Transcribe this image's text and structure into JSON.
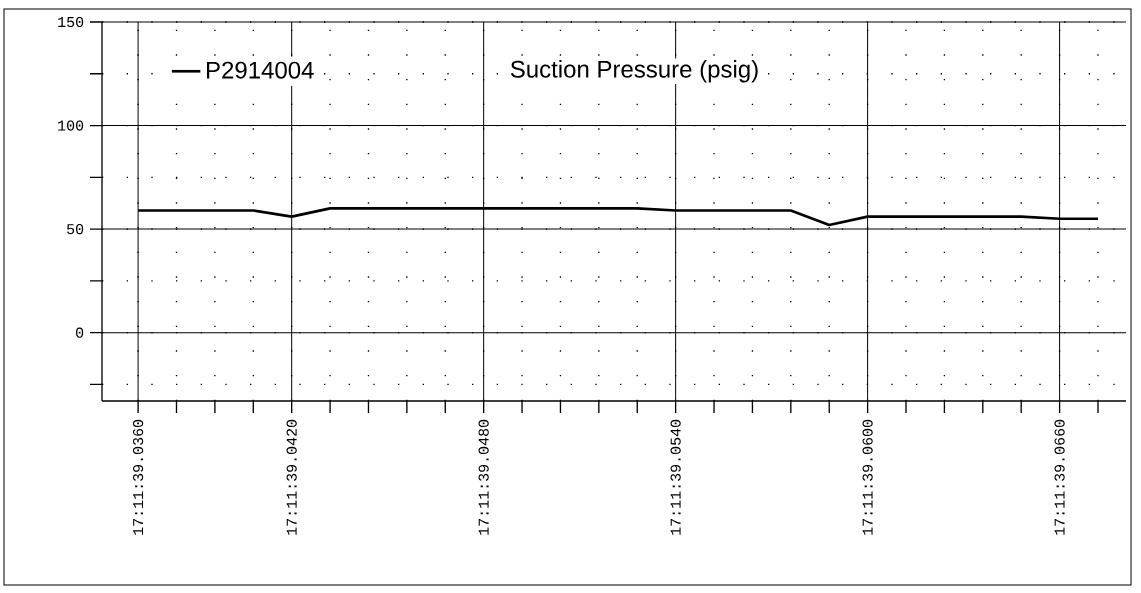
{
  "chart_data": {
    "type": "line",
    "categories": [
      "17:11:39.0360",
      null,
      null,
      null,
      "17:11:39.0420",
      null,
      null,
      null,
      null,
      "17:11:39.0480",
      null,
      null,
      null,
      null,
      "17:11:39.0540",
      null,
      null,
      null,
      null,
      "17:11:39.0600",
      null,
      null,
      null,
      null,
      "17:11:39.0660",
      null
    ],
    "series": [
      {
        "name": "P2914004",
        "color": "#000000",
        "values": [
          59,
          59,
          59,
          59,
          56,
          60,
          60,
          60,
          60,
          60,
          60,
          60,
          60,
          60,
          59,
          59,
          59,
          59,
          52,
          56,
          56,
          56,
          56,
          56,
          55,
          55
        ]
      }
    ],
    "annotations": [
      "Suction Pressure (psig)"
    ],
    "ylim": [
      -33,
      150
    ],
    "yticks": [
      {
        "value": -25,
        "label": null
      },
      0,
      {
        "value": 25,
        "label": null
      },
      50,
      {
        "value": 75,
        "label": null
      },
      100,
      {
        "value": 125,
        "label": null
      },
      150
    ],
    "grid": true,
    "legend": "top left",
    "marker": "none",
    "line_style": "solid"
  }
}
